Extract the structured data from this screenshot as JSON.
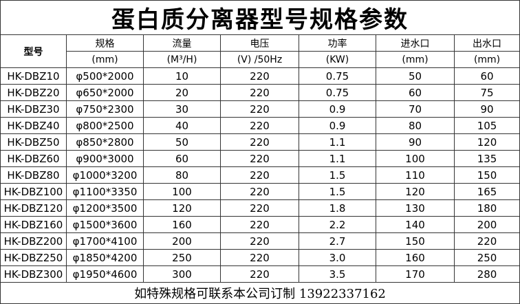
{
  "title": "蛋白质分离器型号规格参数",
  "columns": [
    {
      "name": "型号"
    },
    {
      "name": "规格",
      "unit": "(mm)"
    },
    {
      "name": "流量",
      "unit": "(M³/H)"
    },
    {
      "name": "电压",
      "unit": "(V) /50Hz"
    },
    {
      "name": "功率",
      "unit": "(KW)"
    },
    {
      "name": "进水口",
      "unit": "(mm)"
    },
    {
      "name": "出水口",
      "unit": "(mm)"
    }
  ],
  "rows": [
    [
      "HK-DBZ10",
      "φ500*2000",
      "10",
      "220",
      "0.75",
      "50",
      "60"
    ],
    [
      "HK-DBZ20",
      "φ650*2000",
      "20",
      "220",
      "0.75",
      "60",
      "75"
    ],
    [
      "HK-DBZ30",
      "φ750*2300",
      "30",
      "220",
      "0.9",
      "70",
      "90"
    ],
    [
      "HK-DBZ40",
      "φ800*2500",
      "40",
      "220",
      "0.9",
      "80",
      "105"
    ],
    [
      "HK-DBZ50",
      "φ850*2800",
      "50",
      "220",
      "1.1",
      "90",
      "120"
    ],
    [
      "HK-DBZ60",
      "φ900*3000",
      "60",
      "220",
      "1.1",
      "100",
      "135"
    ],
    [
      "HK-DBZ80",
      "φ1000*3200",
      "80",
      "220",
      "1.5",
      "110",
      "150"
    ],
    [
      "HK-DBZ100",
      "φ1100*3350",
      "100",
      "220",
      "1.5",
      "120",
      "165"
    ],
    [
      "HK-DBZ120",
      "φ1200*3500",
      "120",
      "220",
      "1.8",
      "130",
      "180"
    ],
    [
      "HK-DBZ160",
      "φ1500*3600",
      "160",
      "220",
      "2.2",
      "140",
      "200"
    ],
    [
      "HK-DBZ200",
      "φ1700*4100",
      "200",
      "220",
      "2.7",
      "150",
      "220"
    ],
    [
      "HK-DBZ250",
      "φ1850*4200",
      "250",
      "220",
      "3.0",
      "160",
      "250"
    ],
    [
      "HK-DBZ300",
      "φ1950*4600",
      "300",
      "220",
      "3.5",
      "170",
      "280"
    ]
  ],
  "footer": "如特殊规格可联系本公司订制  13922337162"
}
